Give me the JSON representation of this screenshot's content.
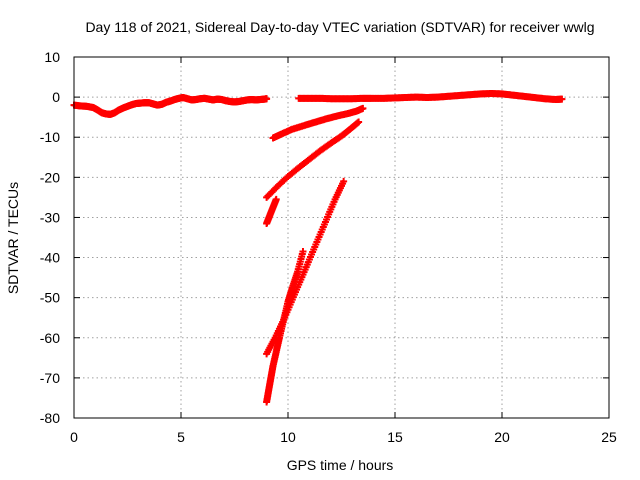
{
  "chart_data": {
    "type": "scatter",
    "title": "Day 118 of 2021, Sidereal Day-to-day VTEC variation (SDTVAR) for receiver wwlg",
    "xlabel": "GPS time / hours",
    "ylabel": "SDTVAR / TECUs",
    "xlim": [
      0,
      25
    ],
    "ylim": [
      -80,
      10
    ],
    "xticks": [
      0,
      5,
      10,
      15,
      20,
      25
    ],
    "yticks": [
      10,
      0,
      -10,
      -20,
      -30,
      -40,
      -50,
      -60,
      -70,
      -80
    ],
    "grid": true,
    "legend": "none",
    "marker": "plus",
    "color": "#ff0000",
    "series": [
      {
        "points": [
          [
            0.0,
            -2.0
          ],
          [
            0.3,
            -2.2
          ],
          [
            0.6,
            -2.3
          ],
          [
            0.9,
            -2.6
          ],
          [
            1.1,
            -3.2
          ],
          [
            1.3,
            -3.9
          ],
          [
            1.5,
            -4.2
          ],
          [
            1.7,
            -4.3
          ],
          [
            1.9,
            -3.9
          ],
          [
            2.1,
            -3.2
          ],
          [
            2.3,
            -2.7
          ],
          [
            2.5,
            -2.3
          ],
          [
            2.7,
            -1.9
          ],
          [
            2.9,
            -1.6
          ],
          [
            3.1,
            -1.5
          ],
          [
            3.3,
            -1.4
          ],
          [
            3.5,
            -1.4
          ],
          [
            3.7,
            -1.7
          ],
          [
            3.9,
            -2.0
          ],
          [
            4.1,
            -1.8
          ],
          [
            4.3,
            -1.3
          ],
          [
            4.5,
            -1.0
          ],
          [
            4.7,
            -0.6
          ],
          [
            4.9,
            -0.3
          ],
          [
            5.1,
            -0.1
          ],
          [
            5.3,
            -0.4
          ],
          [
            5.5,
            -0.7
          ],
          [
            5.7,
            -0.6
          ],
          [
            5.9,
            -0.4
          ],
          [
            6.1,
            -0.3
          ],
          [
            6.3,
            -0.5
          ],
          [
            6.5,
            -0.7
          ],
          [
            6.7,
            -0.5
          ],
          [
            6.9,
            -0.6
          ],
          [
            7.1,
            -0.9
          ],
          [
            7.3,
            -1.1
          ],
          [
            7.5,
            -1.2
          ],
          [
            7.7,
            -1.1
          ],
          [
            7.9,
            -0.9
          ],
          [
            8.1,
            -0.7
          ],
          [
            8.3,
            -0.6
          ],
          [
            8.5,
            -0.7
          ],
          [
            8.7,
            -0.6
          ],
          [
            8.9,
            -0.5
          ],
          [
            9.0,
            -0.4
          ]
        ]
      },
      {
        "points": [
          [
            10.5,
            -0.3
          ],
          [
            11.0,
            -0.3
          ],
          [
            11.5,
            -0.3
          ],
          [
            12.0,
            -0.4
          ],
          [
            12.5,
            -0.4
          ],
          [
            13.0,
            -0.4
          ],
          [
            13.5,
            -0.3
          ],
          [
            13.9,
            -0.3
          ],
          [
            14.5,
            -0.3
          ],
          [
            15.0,
            -0.2
          ],
          [
            15.5,
            -0.1
          ],
          [
            16.0,
            0.0
          ],
          [
            16.5,
            -0.1
          ],
          [
            17.0,
            0.0
          ],
          [
            17.5,
            0.2
          ],
          [
            18.0,
            0.4
          ],
          [
            18.5,
            0.6
          ],
          [
            19.0,
            0.8
          ],
          [
            19.5,
            0.9
          ],
          [
            20.0,
            0.8
          ],
          [
            20.5,
            0.5
          ],
          [
            21.0,
            0.2
          ],
          [
            21.5,
            -0.1
          ],
          [
            22.0,
            -0.4
          ],
          [
            22.5,
            -0.6
          ],
          [
            22.8,
            -0.5
          ]
        ]
      },
      {
        "points": [
          [
            9.3,
            -10.2
          ],
          [
            9.7,
            -9.2
          ],
          [
            10.2,
            -8.0
          ],
          [
            10.8,
            -7.0
          ],
          [
            11.3,
            -6.2
          ],
          [
            11.8,
            -5.4
          ],
          [
            12.3,
            -4.7
          ],
          [
            12.8,
            -4.1
          ],
          [
            13.2,
            -3.5
          ],
          [
            13.5,
            -2.8
          ]
        ]
      },
      {
        "points": [
          [
            9.0,
            -25.0
          ],
          [
            9.5,
            -22.3
          ],
          [
            10.0,
            -19.8
          ],
          [
            10.5,
            -17.6
          ],
          [
            11.0,
            -15.5
          ],
          [
            11.5,
            -13.4
          ],
          [
            12.0,
            -11.5
          ],
          [
            12.5,
            -9.7
          ],
          [
            12.9,
            -8.0
          ],
          [
            13.3,
            -6.2
          ]
        ]
      },
      {
        "points": [
          [
            9.0,
            -31.5
          ],
          [
            9.15,
            -29.5
          ],
          [
            9.3,
            -27.5
          ],
          [
            9.45,
            -25.5
          ]
        ]
      },
      {
        "points": [
          [
            9.0,
            -76.0
          ],
          [
            9.1,
            -73.0
          ],
          [
            9.2,
            -70.0
          ],
          [
            9.3,
            -67.0
          ],
          [
            9.45,
            -63.5
          ],
          [
            9.6,
            -60.0
          ],
          [
            9.8,
            -55.5
          ],
          [
            10.0,
            -51.0
          ],
          [
            10.2,
            -47.5
          ],
          [
            10.45,
            -43.5
          ],
          [
            10.7,
            -38.5
          ]
        ]
      },
      {
        "points": [
          [
            9.0,
            -64.0
          ],
          [
            9.4,
            -60.0
          ],
          [
            9.8,
            -55.5
          ],
          [
            10.2,
            -50.5
          ],
          [
            10.6,
            -45.5
          ],
          [
            11.0,
            -40.5
          ],
          [
            11.4,
            -35.5
          ],
          [
            11.8,
            -30.5
          ],
          [
            12.2,
            -25.5
          ],
          [
            12.6,
            -21.0
          ]
        ]
      }
    ]
  }
}
